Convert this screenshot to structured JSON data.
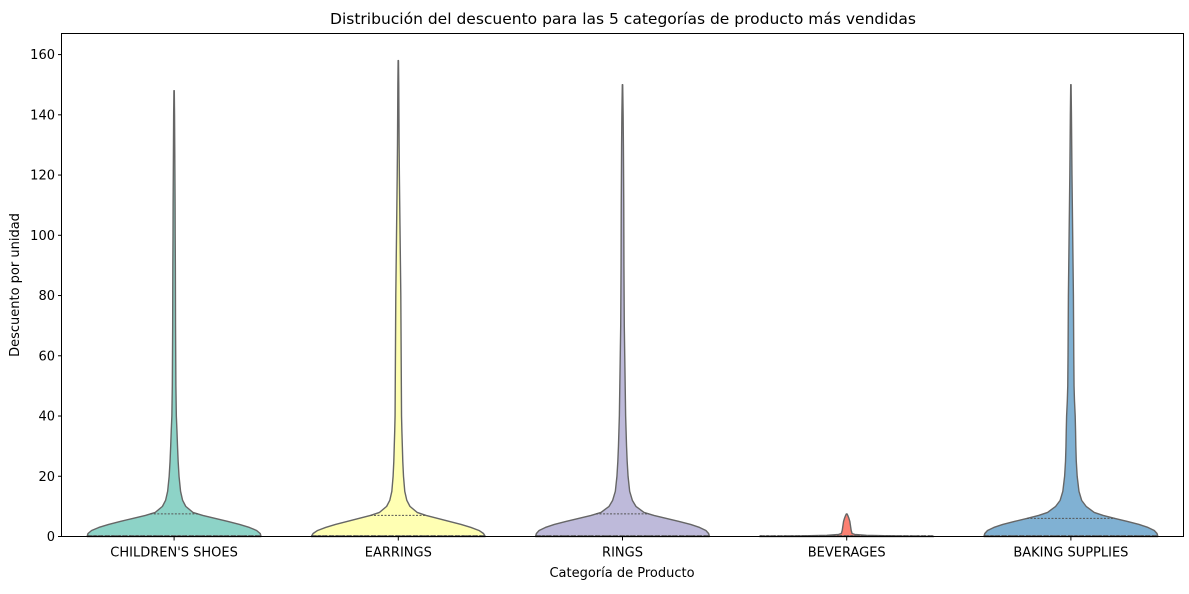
{
  "chart_data": {
    "type": "violin",
    "title": "Distribución del descuento para las 5 categorías de producto más vendidas",
    "xlabel": "Categoría de Producto",
    "ylabel": "Descuento por unidad",
    "ylim": [
      0,
      167
    ],
    "yticks": [
      0,
      20,
      40,
      60,
      80,
      100,
      120,
      140,
      160
    ],
    "grid": false,
    "legend": "none",
    "categories": [
      "CHILDREN'S SHOES",
      "EARRINGS",
      "RINGS",
      "BEVERAGES",
      "BAKING SUPPLIES"
    ],
    "series": [
      {
        "category": "CHILDREN'S SHOES",
        "color": "#8dd3c7",
        "min": 0,
        "q1": 0,
        "median": 0,
        "q3": 7.5,
        "max": 148,
        "density": [
          [
            0,
            0.97
          ],
          [
            1,
            0.96
          ],
          [
            2,
            0.92
          ],
          [
            3,
            0.84
          ],
          [
            4,
            0.73
          ],
          [
            5,
            0.6
          ],
          [
            6,
            0.46
          ],
          [
            7,
            0.32
          ],
          [
            8,
            0.21
          ],
          [
            10,
            0.13
          ],
          [
            12,
            0.095
          ],
          [
            15,
            0.072
          ],
          [
            20,
            0.055
          ],
          [
            25,
            0.045
          ],
          [
            30,
            0.038
          ],
          [
            35,
            0.032
          ],
          [
            40,
            0.025
          ],
          [
            50,
            0.02
          ],
          [
            60,
            0.018
          ],
          [
            70,
            0.016
          ],
          [
            80,
            0.015
          ],
          [
            90,
            0.014
          ],
          [
            100,
            0.012
          ],
          [
            110,
            0.011
          ],
          [
            120,
            0.009
          ],
          [
            130,
            0.007
          ],
          [
            140,
            0.005
          ],
          [
            148,
            0.002
          ]
        ]
      },
      {
        "category": "EARRINGS",
        "color": "#ffffb3",
        "min": 0,
        "q1": 0,
        "median": 0,
        "q3": 7,
        "max": 158,
        "density": [
          [
            0,
            0.97
          ],
          [
            1,
            0.95
          ],
          [
            2,
            0.9
          ],
          [
            3,
            0.81
          ],
          [
            4,
            0.7
          ],
          [
            5,
            0.57
          ],
          [
            6,
            0.44
          ],
          [
            7,
            0.31
          ],
          [
            8,
            0.21
          ],
          [
            10,
            0.13
          ],
          [
            12,
            0.095
          ],
          [
            15,
            0.072
          ],
          [
            20,
            0.058
          ],
          [
            25,
            0.05
          ],
          [
            30,
            0.045
          ],
          [
            35,
            0.04
          ],
          [
            40,
            0.036
          ],
          [
            50,
            0.034
          ],
          [
            60,
            0.032
          ],
          [
            70,
            0.03
          ],
          [
            80,
            0.028
          ],
          [
            90,
            0.024
          ],
          [
            100,
            0.02
          ],
          [
            110,
            0.016
          ],
          [
            120,
            0.012
          ],
          [
            130,
            0.009
          ],
          [
            140,
            0.007
          ],
          [
            150,
            0.005
          ],
          [
            158,
            0.002
          ]
        ]
      },
      {
        "category": "RINGS",
        "color": "#bebada",
        "min": 0,
        "q1": 0,
        "median": 0,
        "q3": 7.5,
        "max": 150,
        "density": [
          [
            0,
            0.97
          ],
          [
            1,
            0.96
          ],
          [
            2,
            0.93
          ],
          [
            3,
            0.86
          ],
          [
            4,
            0.76
          ],
          [
            5,
            0.63
          ],
          [
            6,
            0.49
          ],
          [
            7,
            0.35
          ],
          [
            8,
            0.24
          ],
          [
            10,
            0.15
          ],
          [
            12,
            0.11
          ],
          [
            15,
            0.08
          ],
          [
            20,
            0.062
          ],
          [
            25,
            0.052
          ],
          [
            30,
            0.045
          ],
          [
            35,
            0.04
          ],
          [
            40,
            0.035
          ],
          [
            50,
            0.03
          ],
          [
            60,
            0.025
          ],
          [
            70,
            0.02
          ],
          [
            80,
            0.018
          ],
          [
            90,
            0.016
          ],
          [
            100,
            0.015
          ],
          [
            110,
            0.014
          ],
          [
            120,
            0.012
          ],
          [
            130,
            0.01
          ],
          [
            140,
            0.007
          ],
          [
            150,
            0.002
          ]
        ]
      },
      {
        "category": "BEVERAGES",
        "color": "#fb8072",
        "min": 0,
        "q1": 0,
        "median": 0,
        "q3": 0.3,
        "max": 7.5,
        "density": [
          [
            0,
            0.97
          ],
          [
            0.2,
            0.55
          ],
          [
            0.4,
            0.22
          ],
          [
            0.7,
            0.09
          ],
          [
            1,
            0.06
          ],
          [
            2,
            0.05
          ],
          [
            3,
            0.045
          ],
          [
            4,
            0.04
          ],
          [
            5,
            0.035
          ],
          [
            6,
            0.025
          ],
          [
            7,
            0.012
          ],
          [
            7.5,
            0.004
          ]
        ]
      },
      {
        "category": "BAKING SUPPLIES",
        "color": "#80b1d3",
        "min": 0,
        "q1": 0,
        "median": 0,
        "q3": 6,
        "max": 150,
        "density": [
          [
            0,
            0.97
          ],
          [
            1,
            0.96
          ],
          [
            2,
            0.93
          ],
          [
            3,
            0.86
          ],
          [
            4,
            0.76
          ],
          [
            5,
            0.63
          ],
          [
            6,
            0.49
          ],
          [
            7,
            0.36
          ],
          [
            8,
            0.26
          ],
          [
            10,
            0.17
          ],
          [
            12,
            0.12
          ],
          [
            15,
            0.09
          ],
          [
            20,
            0.07
          ],
          [
            25,
            0.06
          ],
          [
            30,
            0.055
          ],
          [
            35,
            0.052
          ],
          [
            40,
            0.048
          ],
          [
            45,
            0.04
          ],
          [
            50,
            0.035
          ],
          [
            60,
            0.032
          ],
          [
            70,
            0.03
          ],
          [
            80,
            0.028
          ],
          [
            90,
            0.024
          ],
          [
            100,
            0.02
          ],
          [
            110,
            0.016
          ],
          [
            120,
            0.012
          ],
          [
            130,
            0.009
          ],
          [
            140,
            0.006
          ],
          [
            150,
            0.002
          ]
        ]
      }
    ]
  }
}
